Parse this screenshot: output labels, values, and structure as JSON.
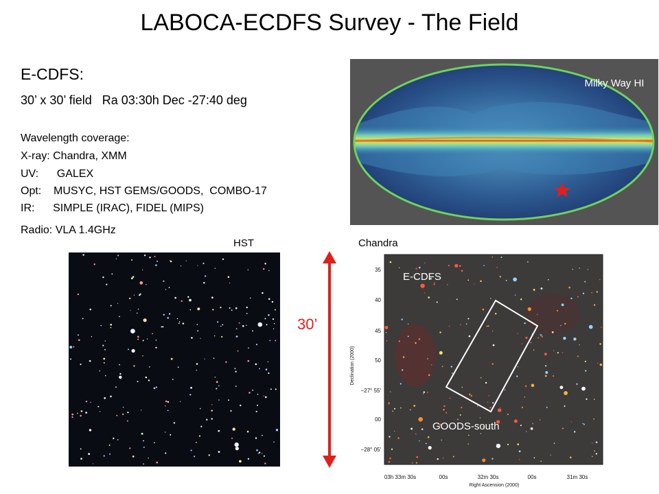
{
  "title": "LABOCA-ECDFS Survey - The Field",
  "field": {
    "name": "E-CDFS:",
    "description": "30’ x 30’ field   Ra 03:30h Dec -27:40 deg"
  },
  "coverage": {
    "heading": "Wavelength coverage:",
    "lines": [
      "X-ray: Chandra, XMM",
      "UV:      GALEX",
      "Opt:    MUSYC, HST GEMS/GOODS,  COMBO-17",
      "IR:      SIMPLE (IRAC), FIDEL (MIPS)",
      "Radio: VLA 1.4GHz"
    ]
  },
  "milkyway": {
    "label": "Milky Way HI",
    "marker": "star-icon"
  },
  "panels": {
    "hst_label": "HST",
    "chandra_label": "Chandra"
  },
  "scale": {
    "label": "30’",
    "color": "#e0201c"
  },
  "chandra_map": {
    "region_label": "E-CDFS",
    "goods_label": "GOODS-south",
    "y_axis_title": "Declination (2000)",
    "x_axis_title": "Right Ascension (2000)",
    "y_ticks": [
      "35",
      "40",
      "45",
      "50",
      "−27° 55′",
      "00",
      "−28° 05′"
    ],
    "x_ticks": [
      "03h 33m 30s",
      "00s",
      "32m 30s",
      "00s",
      "31m 30s"
    ]
  }
}
